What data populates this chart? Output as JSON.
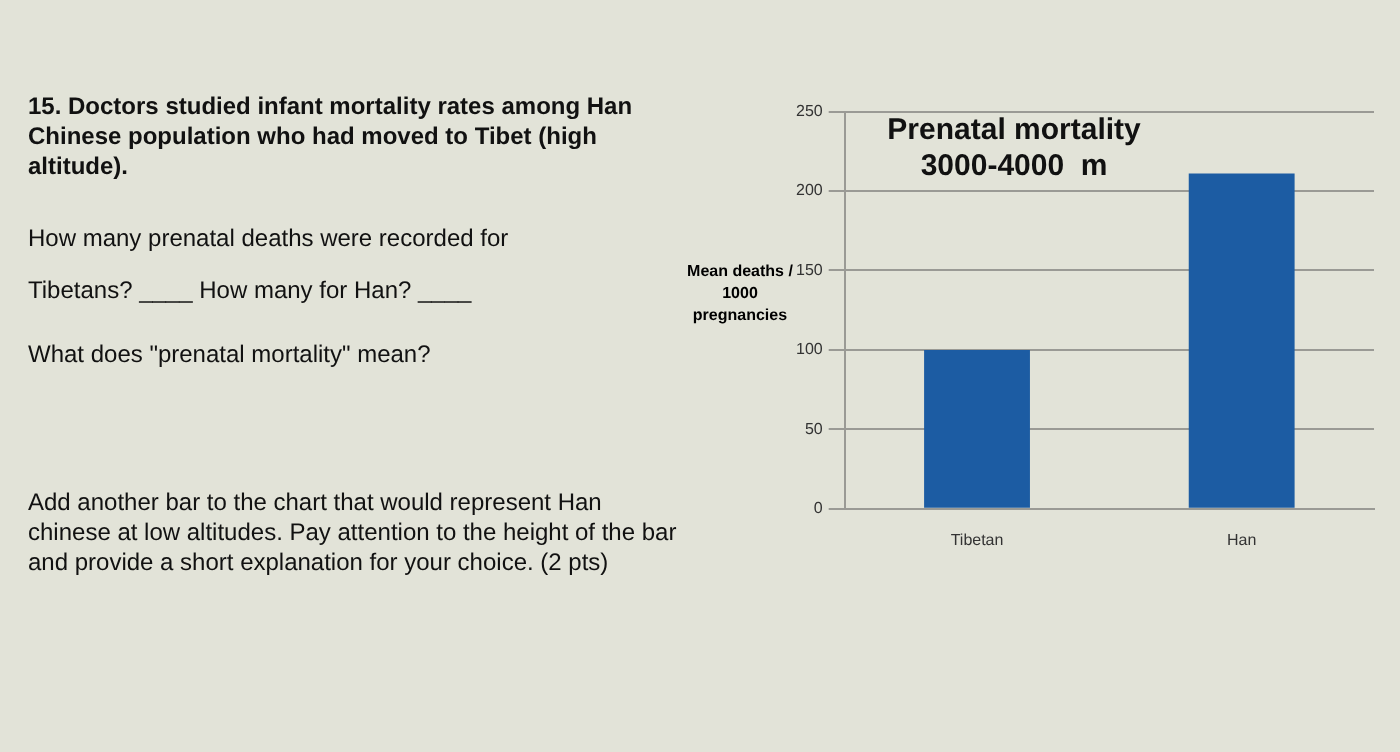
{
  "chart_data": {
    "type": "bar",
    "title": "Prenatal mortality 3000-4000  m",
    "ylabel": "Mean deaths / 1000 pregnancies",
    "categories": [
      "Tibetan",
      "Han"
    ],
    "values": [
      100,
      211
    ],
    "color": "#1c5ca3",
    "ylim": [
      0,
      250
    ],
    "yticks": [
      0,
      50,
      100,
      150,
      200,
      250
    ],
    "grid": "y",
    "annotations": [
      "15. Doctors studied infant mortality rates among Han Chinese population who had moved to Tibet (high altitude).",
      "How many prenatal deaths were recorded for Tibetans? ____ How many for Han? ____",
      "What does \"prenatal mortality\" mean?",
      "Add another bar to the chart that would represent Han chinese at low altitudes.  Pay attention to the height of the bar and provide a short explanation for your choice. (2 pts)"
    ]
  }
}
